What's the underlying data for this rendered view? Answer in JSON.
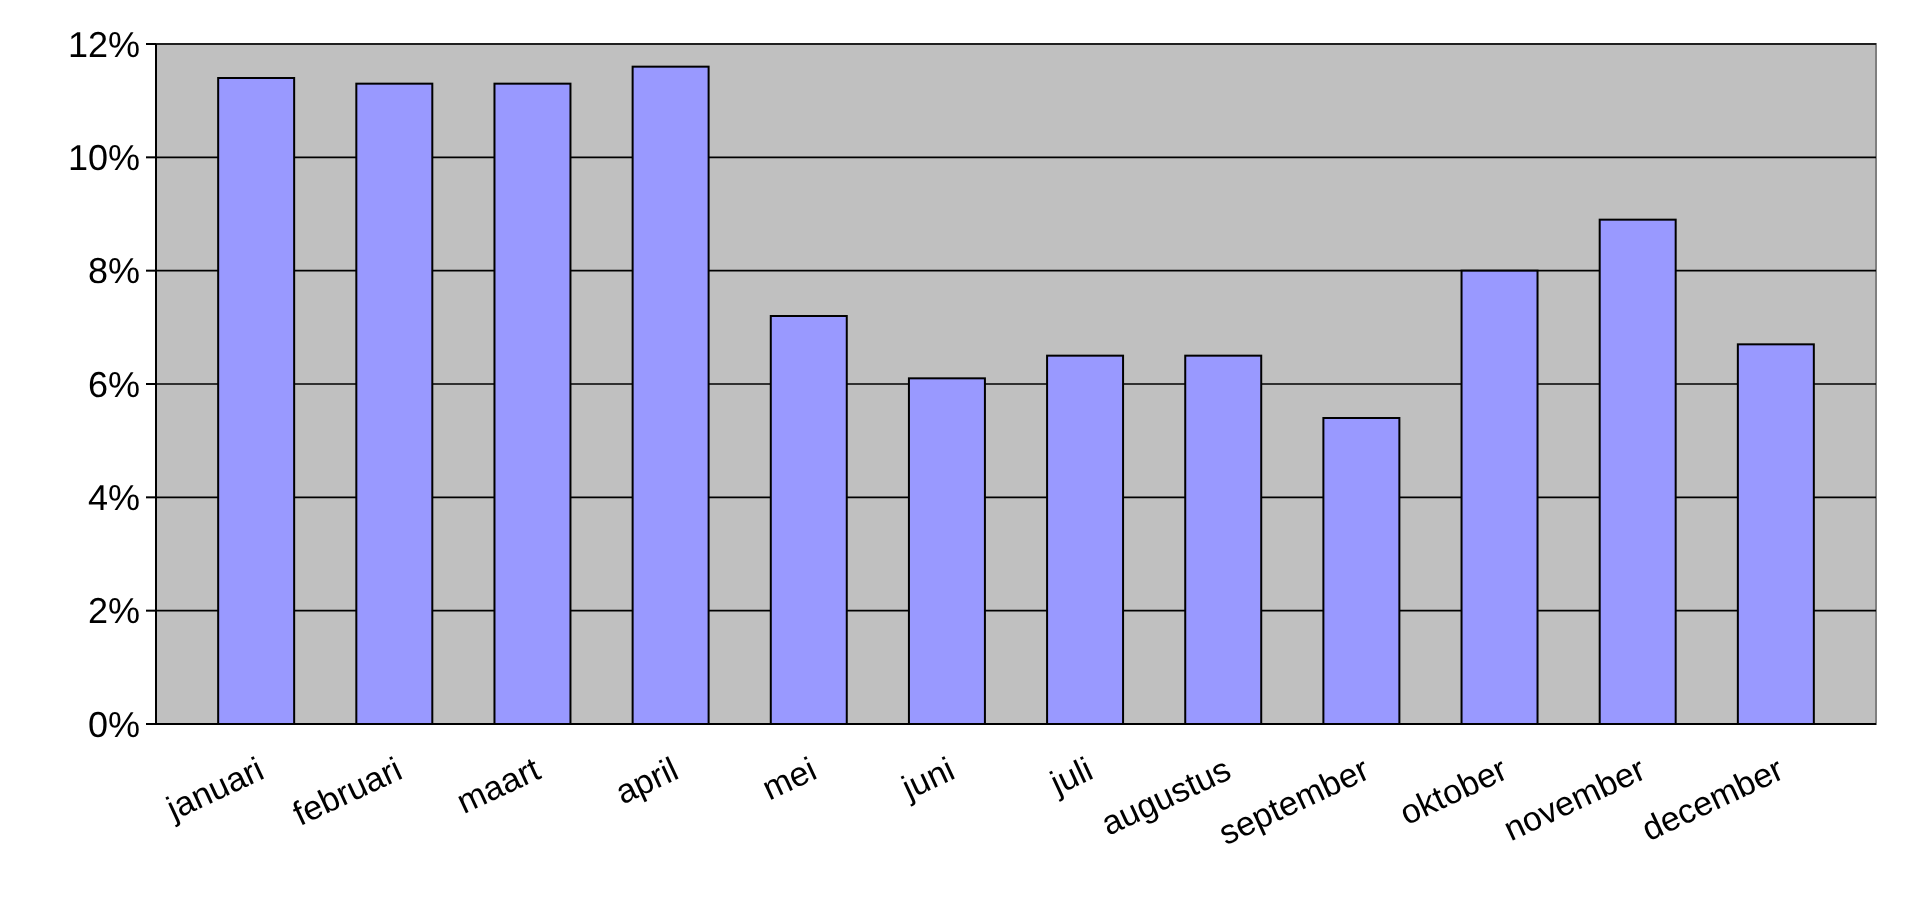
{
  "chart_data": {
    "type": "bar",
    "categories": [
      "januari",
      "februari",
      "maart",
      "april",
      "mei",
      "juni",
      "juli",
      "augustus",
      "september",
      "oktober",
      "november",
      "december"
    ],
    "values": [
      11.4,
      11.3,
      11.3,
      11.6,
      7.2,
      6.1,
      6.5,
      6.5,
      5.4,
      8.0,
      8.9,
      6.7
    ],
    "color": "#9999ff",
    "ylim": [
      0,
      12
    ],
    "yticks": [
      {
        "value": 0,
        "label": "0%"
      },
      {
        "value": 2,
        "label": "2%"
      },
      {
        "value": 4,
        "label": "4%"
      },
      {
        "value": 6,
        "label": "6%"
      },
      {
        "value": 8,
        "label": "8%"
      },
      {
        "value": 10,
        "label": "10%"
      },
      {
        "value": 12,
        "label": "12%"
      }
    ],
    "grid": "y"
  }
}
